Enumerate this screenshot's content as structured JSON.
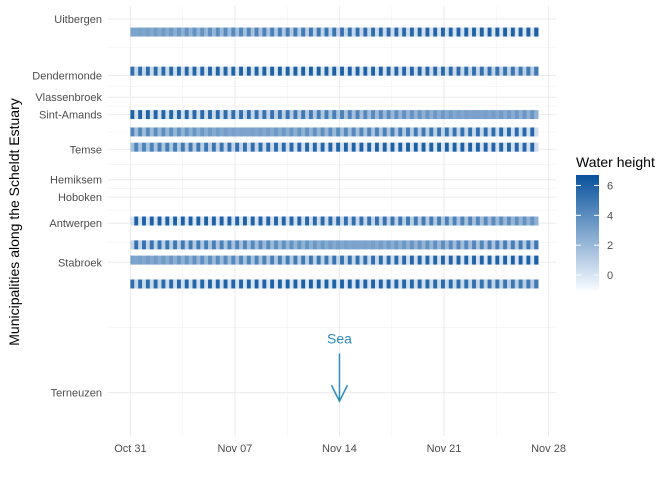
{
  "chart_data": {
    "type": "heatmap",
    "ylabel": "Municipalities along the Scheldt Estuary",
    "x_ticks": [
      "Oct 31",
      "Nov 07",
      "Nov 14",
      "Nov 21",
      "Nov 28"
    ],
    "x_tick_days": [
      0,
      7,
      14,
      21,
      28
    ],
    "x_range_days": [
      -1.5,
      28.5
    ],
    "x_start": "Oct 31",
    "series_x_range_days": [
      0,
      27.2
    ],
    "y_ticks": [
      {
        "label": "Uitbergen",
        "km": 0
      },
      {
        "label": "Dendermonde",
        "km": 13
      },
      {
        "label": "Vlassenbroek",
        "km": 18
      },
      {
        "label": "Sint-Amands",
        "km": 22
      },
      {
        "label": "Temse",
        "km": 30
      },
      {
        "label": "Hemiksem",
        "km": 37
      },
      {
        "label": "Hoboken",
        "km": 41
      },
      {
        "label": "Antwerpen",
        "km": 47
      },
      {
        "label": "Stabroek",
        "km": 56
      },
      {
        "label": "Terneuzen",
        "km": 86
      }
    ],
    "y_range_km": [
      -3,
      96
    ],
    "station_rows_km": [
      3,
      12,
      22,
      26,
      29.5,
      46.5,
      52,
      55.5,
      61
    ],
    "tide_period_days": 0.5175,
    "series_value_range": [
      0,
      6
    ],
    "legend": {
      "title": "Water height",
      "ticks": [
        0,
        2,
        4,
        6
      ],
      "range": [
        -1,
        6.7
      ],
      "color_low": "#f7fbff",
      "color_high": "#08519c"
    },
    "annotation": {
      "text": "Sea",
      "x_day": 14,
      "km_from": 77,
      "km_to": 88,
      "color": "#2b8cbe"
    },
    "grid": true
  }
}
